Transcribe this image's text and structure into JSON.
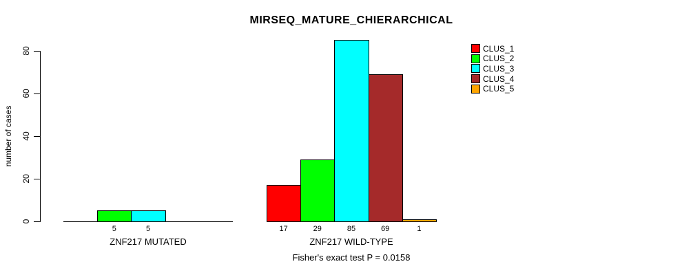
{
  "chart_data": {
    "type": "bar",
    "title": "MIRSEQ_MATURE_CHIERARCHICAL",
    "subtitle": "Fisher's exact test P = 0.0158",
    "ylabel": "number of cases",
    "xlabel": "",
    "ylim": [
      0,
      85
    ],
    "yticks": [
      0,
      20,
      40,
      60,
      80
    ],
    "grid": false,
    "legend_position": "top-right",
    "legend": [
      {
        "label": "CLUS_1",
        "color": "#FF0000"
      },
      {
        "label": "CLUS_2",
        "color": "#00FF00"
      },
      {
        "label": "CLUS_3",
        "color": "#00FFFF"
      },
      {
        "label": "CLUS_4",
        "color": "#A52A2A"
      },
      {
        "label": "CLUS_5",
        "color": "#FFA500"
      }
    ],
    "groups": [
      {
        "label": "ZNF217 MUTATED",
        "values": [
          0,
          5,
          5,
          0,
          0
        ],
        "value_labels": [
          "",
          "5",
          "5",
          "",
          ""
        ]
      },
      {
        "label": "ZNF217 WILD-TYPE",
        "values": [
          17,
          29,
          85,
          69,
          1
        ],
        "value_labels": [
          "17",
          "29",
          "85",
          "69",
          "1"
        ]
      }
    ]
  }
}
